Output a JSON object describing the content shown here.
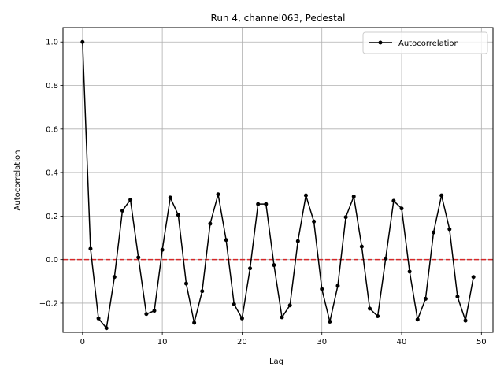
{
  "chart_data": {
    "type": "line",
    "title": "Run 4, channel063, Pedestal",
    "xlabel": "Lag",
    "ylabel": "Autocorrelation",
    "xlim": [
      -2.45,
      51.45
    ],
    "ylim": [
      -0.334,
      1.066
    ],
    "xticks": [
      0,
      10,
      20,
      30,
      40,
      50
    ],
    "xtick_labels": [
      "0",
      "10",
      "20",
      "30",
      "40",
      "50"
    ],
    "yticks": [
      -0.2,
      0.0,
      0.2,
      0.4,
      0.6,
      0.8,
      1.0
    ],
    "ytick_labels": [
      "−0.2",
      "0.0",
      "0.2",
      "0.4",
      "0.6",
      "0.8",
      "1.0"
    ],
    "grid": true,
    "legend_position": "top-right",
    "reference_line": {
      "y": 0.0,
      "color": "#d62728",
      "style": "dashed"
    },
    "series": [
      {
        "name": "Autocorrelation",
        "color": "#000000",
        "marker": "circle",
        "x": [
          0,
          1,
          2,
          3,
          4,
          5,
          6,
          7,
          8,
          9,
          10,
          11,
          12,
          13,
          14,
          15,
          16,
          17,
          18,
          19,
          20,
          21,
          22,
          23,
          24,
          25,
          26,
          27,
          28,
          29,
          30,
          31,
          32,
          33,
          34,
          35,
          36,
          37,
          38,
          39,
          40,
          41,
          42,
          43,
          44,
          45,
          46,
          47,
          48,
          49
        ],
        "y": [
          1.0,
          0.05,
          -0.27,
          -0.315,
          -0.08,
          0.225,
          0.275,
          0.01,
          -0.25,
          -0.235,
          0.045,
          0.285,
          0.205,
          -0.11,
          -0.29,
          -0.145,
          0.165,
          0.3,
          0.09,
          -0.205,
          -0.27,
          -0.04,
          0.255,
          0.255,
          -0.025,
          -0.265,
          -0.21,
          0.085,
          0.295,
          0.175,
          -0.135,
          -0.285,
          -0.12,
          0.195,
          0.29,
          0.06,
          -0.225,
          -0.26,
          0.005,
          0.27,
          0.235,
          -0.055,
          -0.275,
          -0.18,
          0.125,
          0.295,
          0.14,
          -0.17,
          -0.28,
          -0.08
        ]
      }
    ]
  }
}
